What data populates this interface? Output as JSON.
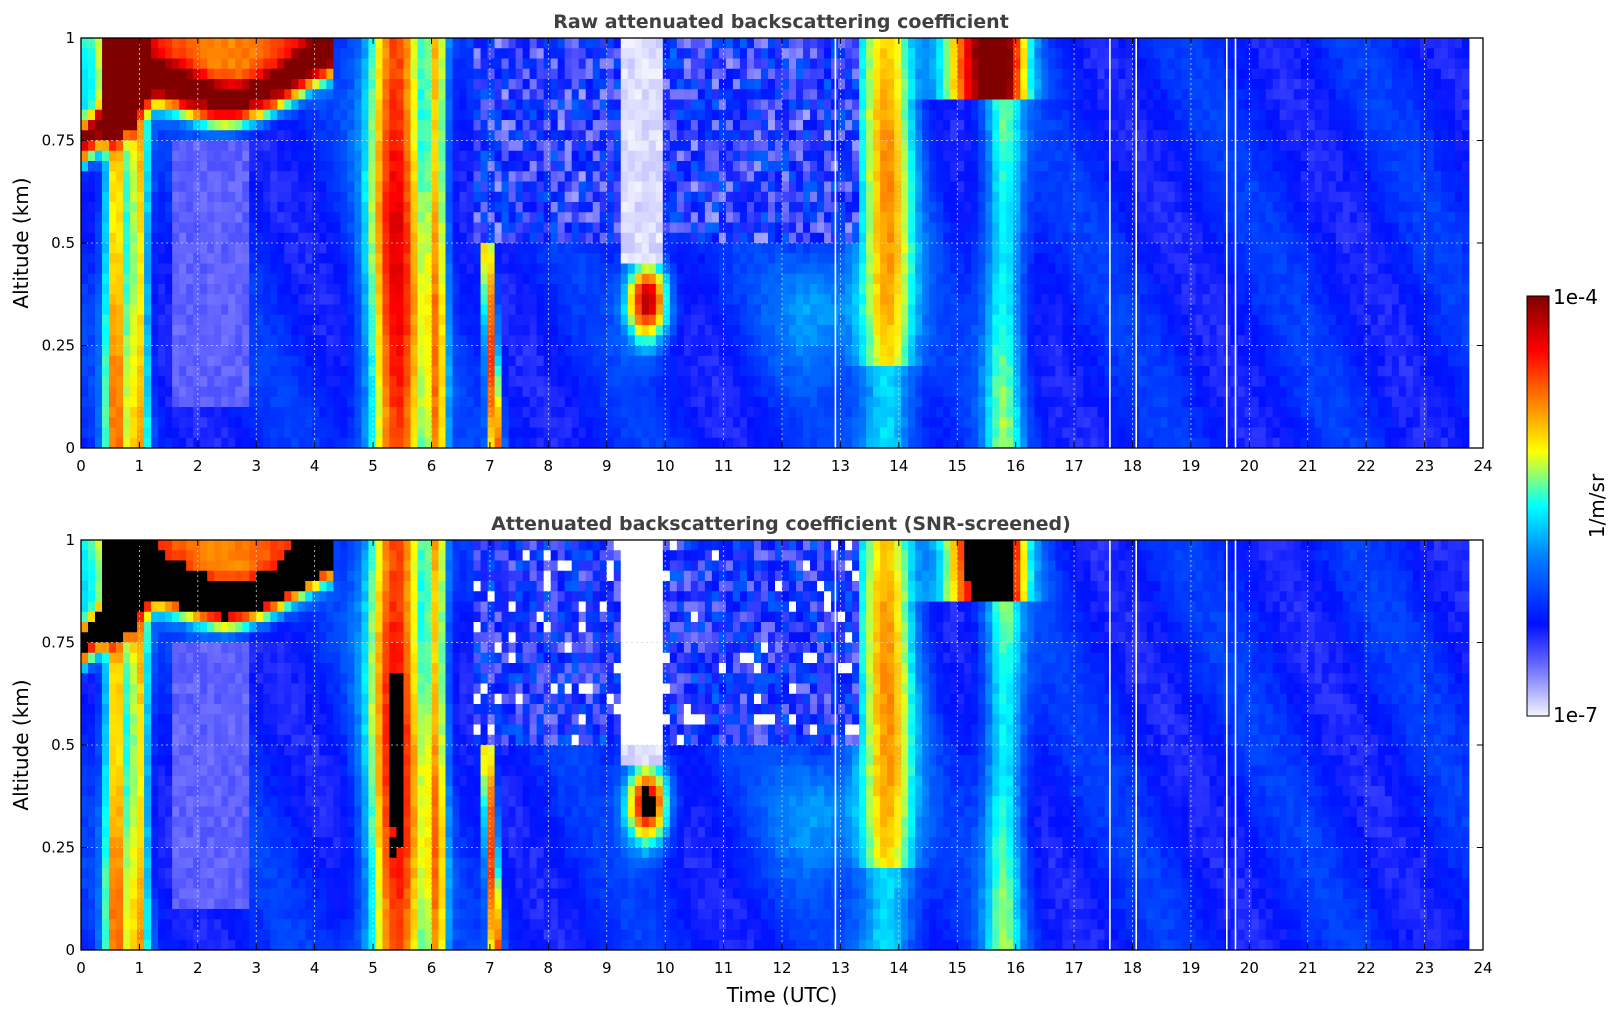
{
  "colormap": [
    "#ffffff",
    "#0000ff",
    "#00ffff",
    "#ffff00",
    "#ff0000",
    "#800000"
  ],
  "screened_over_color": "#000000",
  "colorbar": {
    "label": "1/m/sr",
    "max_label": "1e-4",
    "min_label": "1e-7",
    "scale": "log"
  },
  "chart_data": [
    {
      "type": "heatmap",
      "title": "Raw attenuated backscattering coefficient",
      "xlabel": "",
      "ylabel": "Altitude (km)",
      "xlim": [
        0,
        24
      ],
      "ylim": [
        0,
        1
      ],
      "x_ticks": [
        "0",
        "1",
        "2",
        "3",
        "4",
        "5",
        "6",
        "7",
        "8",
        "9",
        "10",
        "11",
        "12",
        "13",
        "14",
        "15",
        "16",
        "17",
        "18",
        "19",
        "20",
        "21",
        "22",
        "23",
        "24"
      ],
      "y_ticks": [
        "0",
        "0.25",
        "0.5",
        "0.75",
        "1"
      ],
      "grid": true
    },
    {
      "type": "heatmap",
      "title": "Attenuated backscattering coefficient (SNR-screened)",
      "xlabel": "Time (UTC)",
      "ylabel": "Altitude (km)",
      "xlim": [
        0,
        24
      ],
      "ylim": [
        0,
        1
      ],
      "x_ticks": [
        "0",
        "1",
        "2",
        "3",
        "4",
        "5",
        "6",
        "7",
        "8",
        "9",
        "10",
        "11",
        "12",
        "13",
        "14",
        "15",
        "16",
        "17",
        "18",
        "19",
        "20",
        "21",
        "22",
        "23",
        "24"
      ],
      "y_ticks": [
        "0",
        "0.25",
        "0.5",
        "0.75",
        "1"
      ],
      "grid": true
    }
  ]
}
